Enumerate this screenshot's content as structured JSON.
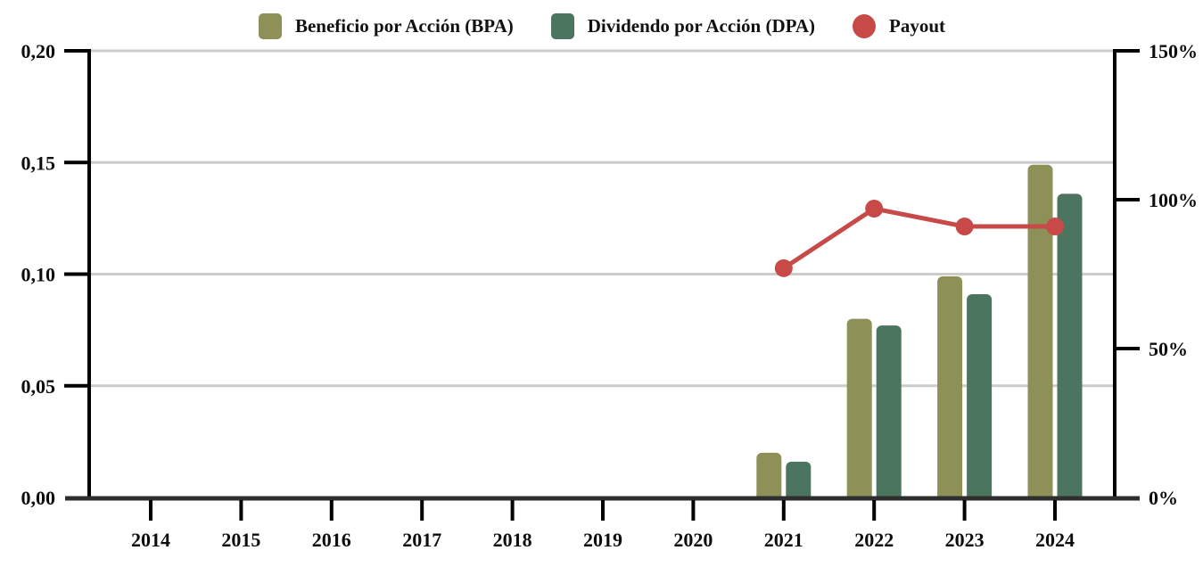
{
  "chart_data": {
    "type": "bar-line-combo",
    "title": "",
    "categories": [
      "2014",
      "2015",
      "2016",
      "2017",
      "2018",
      "2019",
      "2020",
      "2021",
      "2022",
      "2023",
      "2024"
    ],
    "bar_series": [
      {
        "name": "Beneficio por Acción (BPA)",
        "color": "#8D9057",
        "values": [
          null,
          null,
          null,
          null,
          null,
          null,
          null,
          0.02,
          0.08,
          0.099,
          0.149
        ]
      },
      {
        "name": "Dividendo por Acción (DPA)",
        "color": "#4C755F",
        "values": [
          null,
          null,
          null,
          null,
          null,
          null,
          null,
          0.016,
          0.077,
          0.091,
          0.136
        ]
      }
    ],
    "line_series": [
      {
        "name": "Payout",
        "color": "#C74A49",
        "axis": "right",
        "marker": "circle",
        "values": [
          null,
          null,
          null,
          null,
          null,
          null,
          null,
          77,
          97,
          91,
          91
        ]
      }
    ],
    "left_axis": {
      "range": [
        0,
        0.2
      ],
      "ticks": [
        {
          "v": 0.0,
          "label": "0,00"
        },
        {
          "v": 0.05,
          "label": "0,05"
        },
        {
          "v": 0.1,
          "label": "0,10"
        },
        {
          "v": 0.15,
          "label": "0,15"
        },
        {
          "v": 0.2,
          "label": "0,20"
        }
      ]
    },
    "right_axis": {
      "range": [
        0,
        150
      ],
      "ticks": [
        {
          "v": 0,
          "label": "0%"
        },
        {
          "v": 50,
          "label": "50%"
        },
        {
          "v": 100,
          "label": "100%"
        },
        {
          "v": 150,
          "label": "150%"
        }
      ]
    },
    "grid": "horizontal",
    "legend_position": "top",
    "colors": {
      "grid": "#cccccc",
      "axis": "#000000",
      "bottom_axis": "#2e2e2e",
      "text": "#0d0d0d",
      "background": "#ffffff"
    }
  }
}
